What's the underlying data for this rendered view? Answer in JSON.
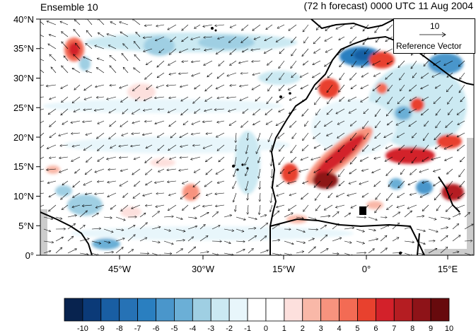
{
  "title": {
    "left": "Ensemble 10",
    "right": "(72 h forecast) 0000 UTC 11 Aug 2004"
  },
  "axes": {
    "y_labels": [
      "40°N",
      "35°N",
      "30°N",
      "25°N",
      "20°N",
      "15°N",
      "10°N",
      "5°N",
      "0°"
    ],
    "x_labels": [
      "45°W",
      "30°W",
      "15°W",
      "0°",
      "15°E"
    ]
  },
  "reference_vector": {
    "value": "10",
    "label": "Reference Vector"
  },
  "colorbar": {
    "labels": [
      "-10",
      "-9",
      "-8",
      "-7",
      "-6",
      "-5",
      "-4",
      "-3",
      "-2",
      "-1",
      "0",
      "1",
      "2",
      "3",
      "4",
      "5",
      "6",
      "7",
      "8",
      "9",
      "10"
    ],
    "colors": [
      "#08234f",
      "#0b3a78",
      "#195ea3",
      "#2672b5",
      "#2a7fc0",
      "#4a96cb",
      "#6bafd6",
      "#9fcfe3",
      "#cbe9f2",
      "#e8f6fb",
      "#ffffff",
      "#ffffff",
      "#fde0dd",
      "#f9b8a8",
      "#f7937e",
      "#f36b54",
      "#e8412e",
      "#d3212a",
      "#b51d22",
      "#8e1318",
      "#670a0d"
    ]
  },
  "chart_data": {
    "type": "heatmap",
    "title": "(72 h forecast) 0000 UTC 11 Aug 2004",
    "subtitle": "Ensemble 10",
    "lon_range": [
      -57,
      20
    ],
    "lat_range": [
      0,
      40
    ],
    "color_range": [
      -10,
      10
    ],
    "anomaly_centers": [
      {
        "lon": -51,
        "lat": 36,
        "value": 8
      },
      {
        "lon": -4,
        "lat": 30,
        "value": 5
      },
      {
        "lon": 2,
        "lat": 33,
        "value": 6
      },
      {
        "lon": 0,
        "lat": 35,
        "value": -6
      },
      {
        "lon": -8,
        "lat": 13,
        "value": 9
      },
      {
        "lon": -4,
        "lat": 18,
        "value": 7
      },
      {
        "lon": 8,
        "lat": 19,
        "value": 8
      },
      {
        "lon": 15,
        "lat": 11,
        "value": 9
      },
      {
        "lon": 10,
        "lat": 27,
        "value": 7
      },
      {
        "lon": 7,
        "lat": 12,
        "value": -5
      },
      {
        "lon": -30,
        "lat": 11,
        "value": 4
      },
      {
        "lon": -22,
        "lat": 17,
        "value": -3
      },
      {
        "lon": -40,
        "lat": 36,
        "value": -3
      },
      {
        "lon": -28,
        "lat": 36,
        "value": -3
      }
    ]
  }
}
